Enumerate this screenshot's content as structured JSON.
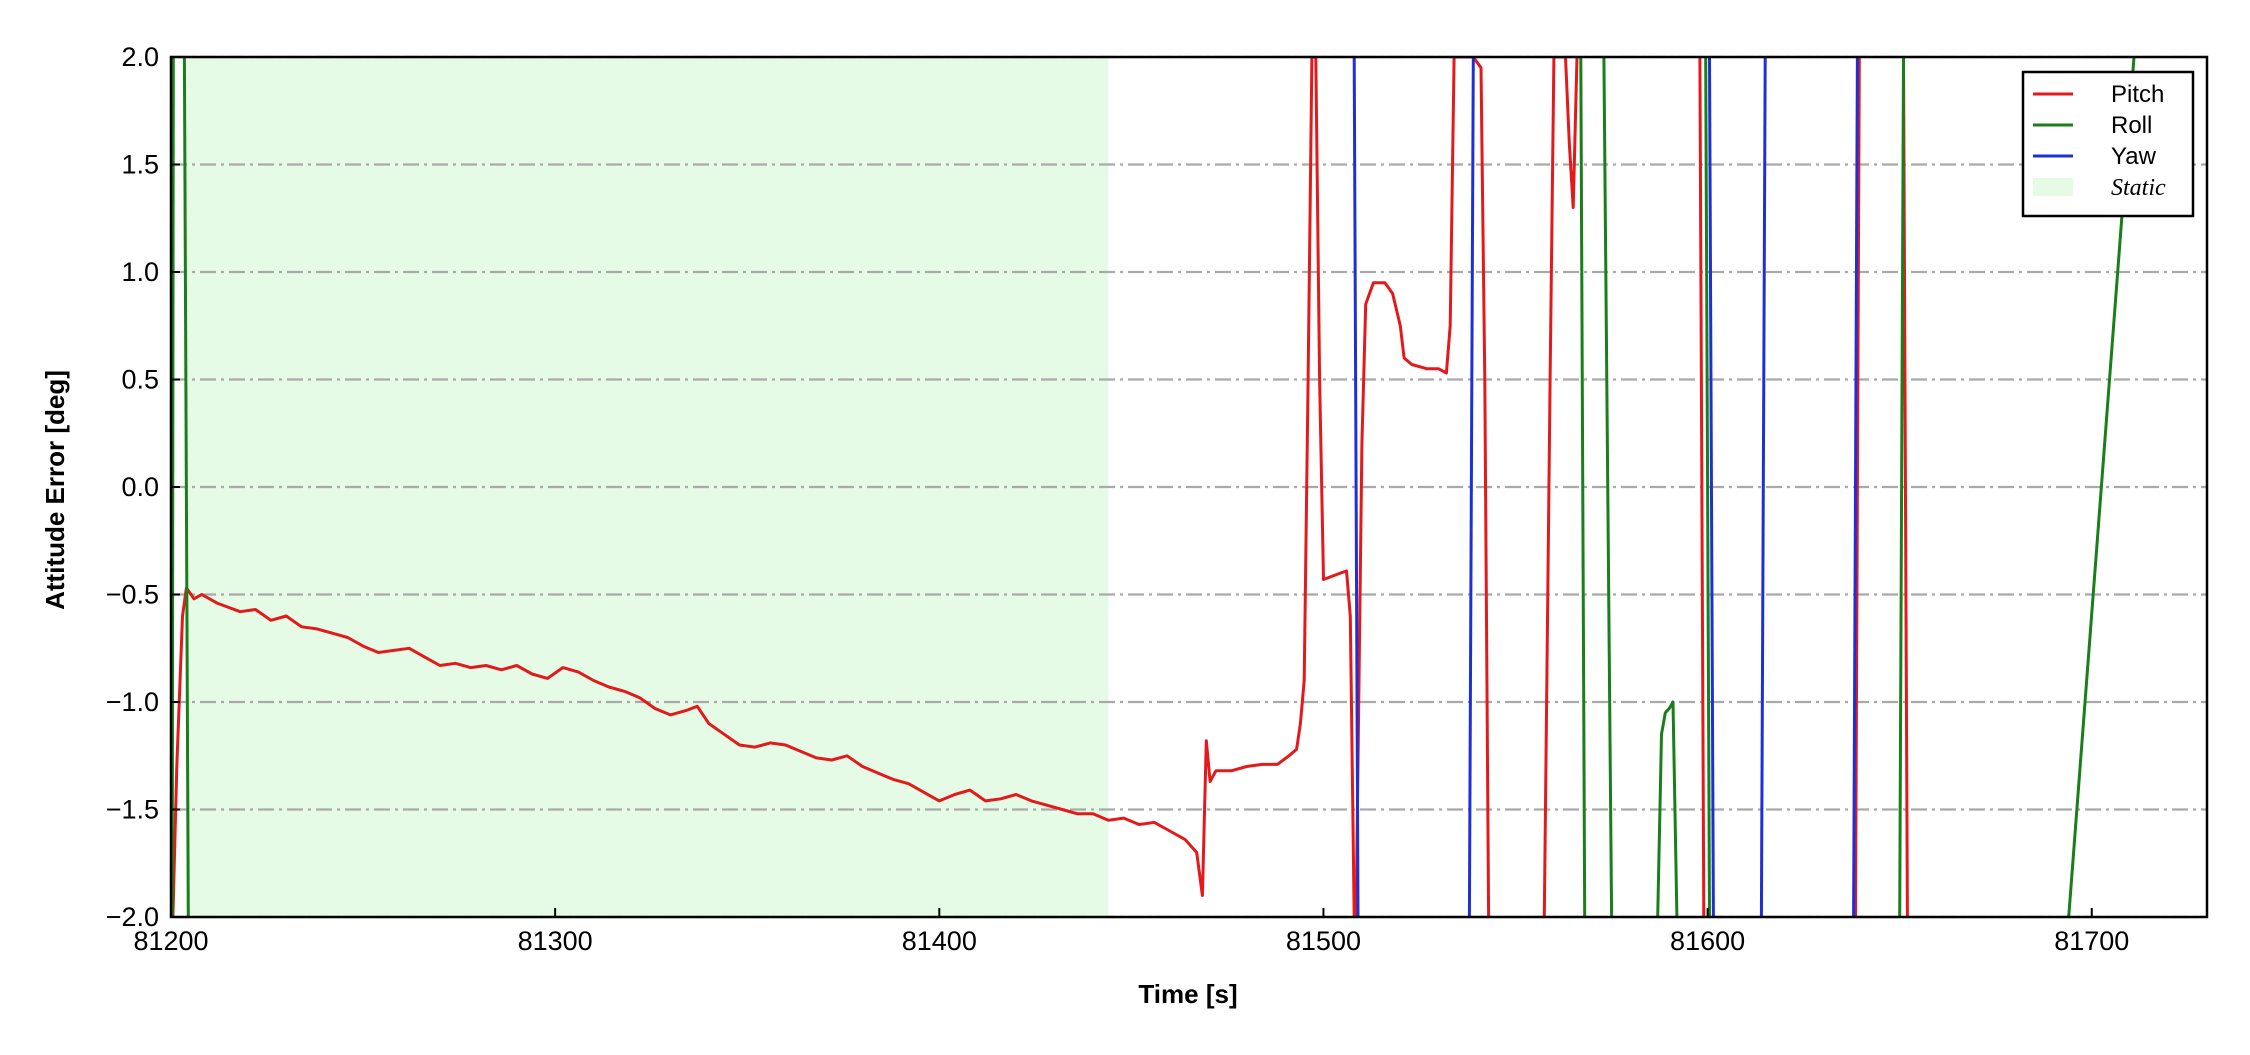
{
  "chart_data": {
    "type": "line",
    "xlabel": "Time [s]",
    "ylabel": "Attitude Error [deg]",
    "xlim": [
      81200,
      81730
    ],
    "ylim": [
      -2.0,
      2.0
    ],
    "x_ticks": [
      81200,
      81300,
      81400,
      81500,
      81600,
      81700
    ],
    "y_ticks": [
      -2.0,
      -1.5,
      -1.0,
      -0.5,
      0.0,
      0.5,
      1.0,
      1.5,
      2.0
    ],
    "y_tick_labels": [
      "−2.0",
      "−1.5",
      "−1.0",
      "−0.5",
      "0.0",
      "0.5",
      "1.0",
      "1.5",
      "2.0"
    ],
    "grid": "horizontal dash-dot",
    "legend_position": "top-right",
    "shaded_regions": [
      {
        "name": "Static",
        "x_start": 81204,
        "x_end": 81444,
        "color": "#e6fbe6"
      }
    ],
    "series": [
      {
        "name": "Pitch",
        "color": "#e31a1c",
        "points": [
          [
            81200.5,
            -2.0
          ],
          [
            81201.5,
            -1.3
          ],
          [
            81203,
            -0.6
          ],
          [
            81204,
            -0.47
          ],
          [
            81206,
            -0.52
          ],
          [
            81208,
            -0.5
          ],
          [
            81212,
            -0.54
          ],
          [
            81215,
            -0.56
          ],
          [
            81218,
            -0.58
          ],
          [
            81222,
            -0.57
          ],
          [
            81226,
            -0.62
          ],
          [
            81230,
            -0.6
          ],
          [
            81234,
            -0.65
          ],
          [
            81238,
            -0.66
          ],
          [
            81242,
            -0.68
          ],
          [
            81246,
            -0.7
          ],
          [
            81250,
            -0.74
          ],
          [
            81254,
            -0.77
          ],
          [
            81258,
            -0.76
          ],
          [
            81262,
            -0.75
          ],
          [
            81266,
            -0.79
          ],
          [
            81270,
            -0.83
          ],
          [
            81274,
            -0.82
          ],
          [
            81278,
            -0.84
          ],
          [
            81282,
            -0.83
          ],
          [
            81286,
            -0.85
          ],
          [
            81290,
            -0.83
          ],
          [
            81294,
            -0.87
          ],
          [
            81298,
            -0.89
          ],
          [
            81302,
            -0.84
          ],
          [
            81306,
            -0.86
          ],
          [
            81310,
            -0.9
          ],
          [
            81314,
            -0.93
          ],
          [
            81318,
            -0.95
          ],
          [
            81322,
            -0.98
          ],
          [
            81326,
            -1.03
          ],
          [
            81330,
            -1.06
          ],
          [
            81334,
            -1.04
          ],
          [
            81337,
            -1.02
          ],
          [
            81340,
            -1.1
          ],
          [
            81344,
            -1.15
          ],
          [
            81348,
            -1.2
          ],
          [
            81352,
            -1.21
          ],
          [
            81356,
            -1.19
          ],
          [
            81360,
            -1.2
          ],
          [
            81364,
            -1.23
          ],
          [
            81368,
            -1.26
          ],
          [
            81372,
            -1.27
          ],
          [
            81376,
            -1.25
          ],
          [
            81380,
            -1.3
          ],
          [
            81384,
            -1.33
          ],
          [
            81388,
            -1.36
          ],
          [
            81392,
            -1.38
          ],
          [
            81396,
            -1.42
          ],
          [
            81400,
            -1.46
          ],
          [
            81404,
            -1.43
          ],
          [
            81408,
            -1.41
          ],
          [
            81412,
            -1.46
          ],
          [
            81416,
            -1.45
          ],
          [
            81420,
            -1.43
          ],
          [
            81424,
            -1.46
          ],
          [
            81428,
            -1.48
          ],
          [
            81432,
            -1.5
          ],
          [
            81436,
            -1.52
          ],
          [
            81440,
            -1.52
          ],
          [
            81444,
            -1.55
          ],
          [
            81448,
            -1.54
          ],
          [
            81452,
            -1.57
          ],
          [
            81456,
            -1.56
          ],
          [
            81460,
            -1.6
          ],
          [
            81464,
            -1.64
          ],
          [
            81467,
            -1.7
          ],
          [
            81468.5,
            -1.9
          ],
          [
            81469.5,
            -1.18
          ],
          [
            81470.5,
            -1.37
          ],
          [
            81472,
            -1.32
          ],
          [
            81476,
            -1.32
          ],
          [
            81480,
            -1.3
          ],
          [
            81484,
            -1.29
          ],
          [
            81488,
            -1.29
          ],
          [
            81491,
            -1.25
          ],
          [
            81493,
            -1.22
          ],
          [
            81494,
            -1.1
          ],
          [
            81495,
            -0.9
          ],
          [
            81496,
            0.5
          ],
          [
            81497,
            2.0
          ],
          [
            81498,
            2.0
          ],
          [
            81499,
            0.5
          ],
          [
            81500,
            -0.43
          ],
          [
            81503,
            -0.41
          ],
          [
            81506,
            -0.39
          ],
          [
            81507,
            -0.6
          ],
          [
            81508,
            -2.0
          ]
        ]
      },
      {
        "name": "Pitch",
        "color": "#e31a1c",
        "points": [
          [
            81508.5,
            -2.0
          ],
          [
            81510,
            0.2
          ],
          [
            81511,
            0.85
          ],
          [
            81513,
            0.95
          ],
          [
            81516,
            0.95
          ],
          [
            81518,
            0.9
          ],
          [
            81520,
            0.75
          ],
          [
            81521,
            0.6
          ],
          [
            81523,
            0.57
          ],
          [
            81527,
            0.55
          ],
          [
            81530,
            0.55
          ],
          [
            81532,
            0.53
          ],
          [
            81533,
            0.75
          ],
          [
            81534,
            2.0
          ],
          [
            81539,
            2.0
          ],
          [
            81541,
            1.95
          ],
          [
            81542,
            0.5
          ],
          [
            81543,
            -2.0
          ]
        ]
      },
      {
        "name": "Pitch",
        "color": "#e31a1c",
        "points": [
          [
            81557.5,
            -2.0
          ],
          [
            81559,
            0.5
          ],
          [
            81560,
            2.0
          ],
          [
            81563,
            2.0
          ],
          [
            81564,
            1.6
          ],
          [
            81565,
            1.3
          ],
          [
            81566,
            2.0
          ]
        ]
      },
      {
        "name": "Pitch",
        "color": "#e31a1c",
        "points": [
          [
            81598,
            2.0
          ],
          [
            81599,
            -2.0
          ]
        ]
      },
      {
        "name": "Pitch",
        "color": "#e31a1c",
        "points": [
          [
            81638.5,
            -2.0
          ],
          [
            81639.5,
            2.0
          ]
        ]
      },
      {
        "name": "Pitch",
        "color": "#e31a1c",
        "points": [
          [
            81651,
            2.0
          ],
          [
            81652,
            -2.0
          ]
        ]
      },
      {
        "name": "Roll",
        "color": "#1a7f1a",
        "points": [
          [
            81200.3,
            -2.0
          ],
          [
            81200.6,
            2.0
          ]
        ]
      },
      {
        "name": "Roll",
        "color": "#1a7f1a",
        "points": [
          [
            81203.5,
            2.0
          ],
          [
            81204.5,
            -2.0
          ]
        ]
      },
      {
        "name": "Roll",
        "color": "#1a7f1a",
        "points": [
          [
            81567,
            2.0
          ],
          [
            81568,
            -2.0
          ]
        ]
      },
      {
        "name": "Roll",
        "color": "#1a7f1a",
        "points": [
          [
            81573,
            2.0
          ],
          [
            81575,
            -2.0
          ]
        ]
      },
      {
        "name": "Roll",
        "color": "#1a7f1a",
        "points": [
          [
            81587,
            -2.0
          ],
          [
            81588,
            -1.15
          ],
          [
            81589,
            -1.05
          ],
          [
            81590,
            -1.03
          ],
          [
            81591,
            -1.0
          ],
          [
            81592,
            -2.0
          ]
        ]
      },
      {
        "name": "Roll",
        "color": "#1a7f1a",
        "points": [
          [
            81599.5,
            2.0
          ],
          [
            81600.5,
            -2.0
          ]
        ]
      },
      {
        "name": "Roll",
        "color": "#1a7f1a",
        "points": [
          [
            81650,
            -2.0
          ],
          [
            81651,
            2.0
          ]
        ]
      },
      {
        "name": "Roll",
        "color": "#1a7f1a",
        "points": [
          [
            81694,
            -2.0
          ],
          [
            81711,
            2.0
          ]
        ]
      },
      {
        "name": "Yaw",
        "color": "#1f2fd6",
        "points": [
          [
            81508,
            2.0
          ],
          [
            81509,
            -2.0
          ]
        ]
      },
      {
        "name": "Yaw",
        "color": "#1f2fd6",
        "points": [
          [
            81538,
            -2.0
          ],
          [
            81539,
            2.0
          ]
        ]
      },
      {
        "name": "Yaw",
        "color": "#1f2fd6",
        "points": [
          [
            81600.5,
            2.0
          ],
          [
            81601.5,
            -2.0
          ]
        ]
      },
      {
        "name": "Yaw",
        "color": "#1f2fd6",
        "points": [
          [
            81614,
            -2.0
          ],
          [
            81615,
            2.0
          ]
        ]
      },
      {
        "name": "Yaw",
        "color": "#1f2fd6",
        "points": [
          [
            81638,
            -2.0
          ],
          [
            81639,
            2.0
          ]
        ]
      }
    ],
    "legend": [
      {
        "label": "Pitch",
        "color": "#e31a1c",
        "kind": "line"
      },
      {
        "label": "Roll",
        "color": "#1a7f1a",
        "kind": "line"
      },
      {
        "label": "Yaw",
        "color": "#1f2fd6",
        "kind": "line"
      },
      {
        "label": "Static",
        "color": "#e6fbe6",
        "kind": "patch"
      }
    ]
  }
}
